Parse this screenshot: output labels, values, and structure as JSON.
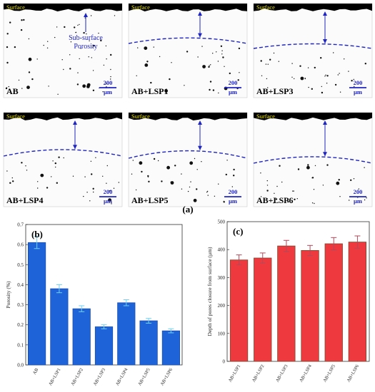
{
  "figure": {
    "panel_a_label": "(a)",
    "micrographs": [
      {
        "id": "ab",
        "label": "AB",
        "surface_label": "Surface",
        "scale_value": "200",
        "scale_unit": "µm",
        "annotation_lines": [
          "Sub-surface",
          "Porosity"
        ]
      },
      {
        "id": "lsp1",
        "label": "AB+LSP1",
        "surface_label": "Surface",
        "scale_value": "200",
        "scale_unit": "µm"
      },
      {
        "id": "lsp3",
        "label": "AB+LSP3",
        "surface_label": "Surface",
        "scale_value": "200",
        "scale_unit": "µm"
      },
      {
        "id": "lsp4",
        "label": "AB+LSP4",
        "surface_label": "Surface",
        "scale_value": "200",
        "scale_unit": "µm"
      },
      {
        "id": "lsp5",
        "label": "AB+LSP5",
        "surface_label": "Surface",
        "scale_value": "200",
        "scale_unit": "µm"
      },
      {
        "id": "lsp6",
        "label": "AB+LSP6",
        "surface_label": "Surface",
        "scale_value": "200",
        "scale_unit": "µm"
      }
    ],
    "colors": {
      "surface": "#000000",
      "annotation": "#1f25c2",
      "surface_label": "#e8e200",
      "bar_b": "#1f63d8",
      "bar_c": "#ee3a3f",
      "bar_c_edge": "#7a4a30",
      "err_b": "#6fd0f5",
      "err_c": "#b04a5a"
    }
  },
  "chart_data": [
    {
      "panel_label": "(b)",
      "type": "bar",
      "categories": [
        "AB",
        "AB+LSP1",
        "AB+LSP2",
        "AB+LSP3",
        "AB+LSP4",
        "AB+LSP5",
        "AB+LSP6"
      ],
      "values": [
        0.61,
        0.38,
        0.28,
        0.19,
        0.31,
        0.22,
        0.17
      ],
      "errors": [
        0.03,
        0.02,
        0.015,
        0.01,
        0.015,
        0.012,
        0.01
      ],
      "ylabel": "Porosity (%)",
      "ylim": [
        0,
        0.7
      ],
      "yticks": [
        "0.0",
        "0.1",
        "0.2",
        "0.3",
        "0.4",
        "0.5",
        "0.6",
        "0.7"
      ]
    },
    {
      "panel_label": "(c)",
      "type": "bar",
      "categories": [
        "AB+LSP1",
        "AB+LSP2",
        "AB+LSP3",
        "AB+LSP4",
        "AB+LSP5",
        "AB+LSP6"
      ],
      "values": [
        363,
        370,
        413,
        397,
        421,
        427
      ],
      "errors": [
        18,
        18,
        20,
        18,
        22,
        22
      ],
      "ylabel": "Depth of pores closure from surface (µm)",
      "ylim": [
        0,
        500
      ],
      "yticks": [
        "0",
        "100",
        "200",
        "300",
        "400",
        "500"
      ]
    }
  ]
}
